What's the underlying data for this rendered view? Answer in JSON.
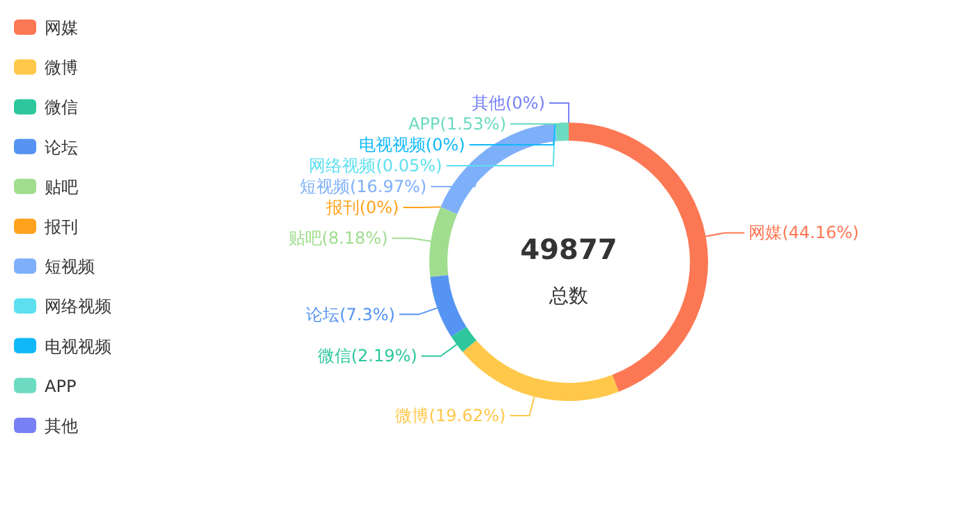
{
  "chart_data": {
    "type": "donut",
    "categories": [
      "网媒",
      "微博",
      "微信",
      "论坛",
      "贴吧",
      "报刊",
      "短视频",
      "网络视频",
      "电视视频",
      "APP",
      "其他"
    ],
    "values": [
      44.16,
      19.62,
      2.19,
      7.3,
      8.18,
      0,
      16.97,
      0.05,
      0,
      1.53,
      0
    ],
    "colors": [
      "#fc7753",
      "#ffc84b",
      "#2ec79d",
      "#5594f2",
      "#a0dd8f",
      "#ffa31f",
      "#7eb0f9",
      "#5ddff0",
      "#10b8f9",
      "#6ddbc1",
      "#7780f5"
    ],
    "value_labels": [
      "网媒(44.16%)",
      "微博(19.62%)",
      "微信(2.19%)",
      "论坛(7.3%)",
      "贴吧(8.18%)",
      "报刊(0%)",
      "短视频(16.97%)",
      "网络视频(0.05%)",
      "电视视频(0%)",
      "APP(1.53%)",
      "其他(0%)"
    ],
    "annotations": [
      "49877",
      "总数"
    ],
    "legend": "top left"
  }
}
